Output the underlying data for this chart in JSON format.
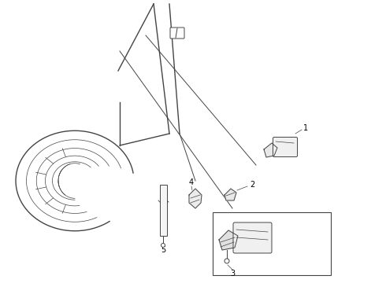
{
  "bg_color": "#ffffff",
  "line_color": "#444444",
  "label_color": "#000000",
  "fig_width": 4.9,
  "fig_height": 3.6,
  "dpi": 100
}
